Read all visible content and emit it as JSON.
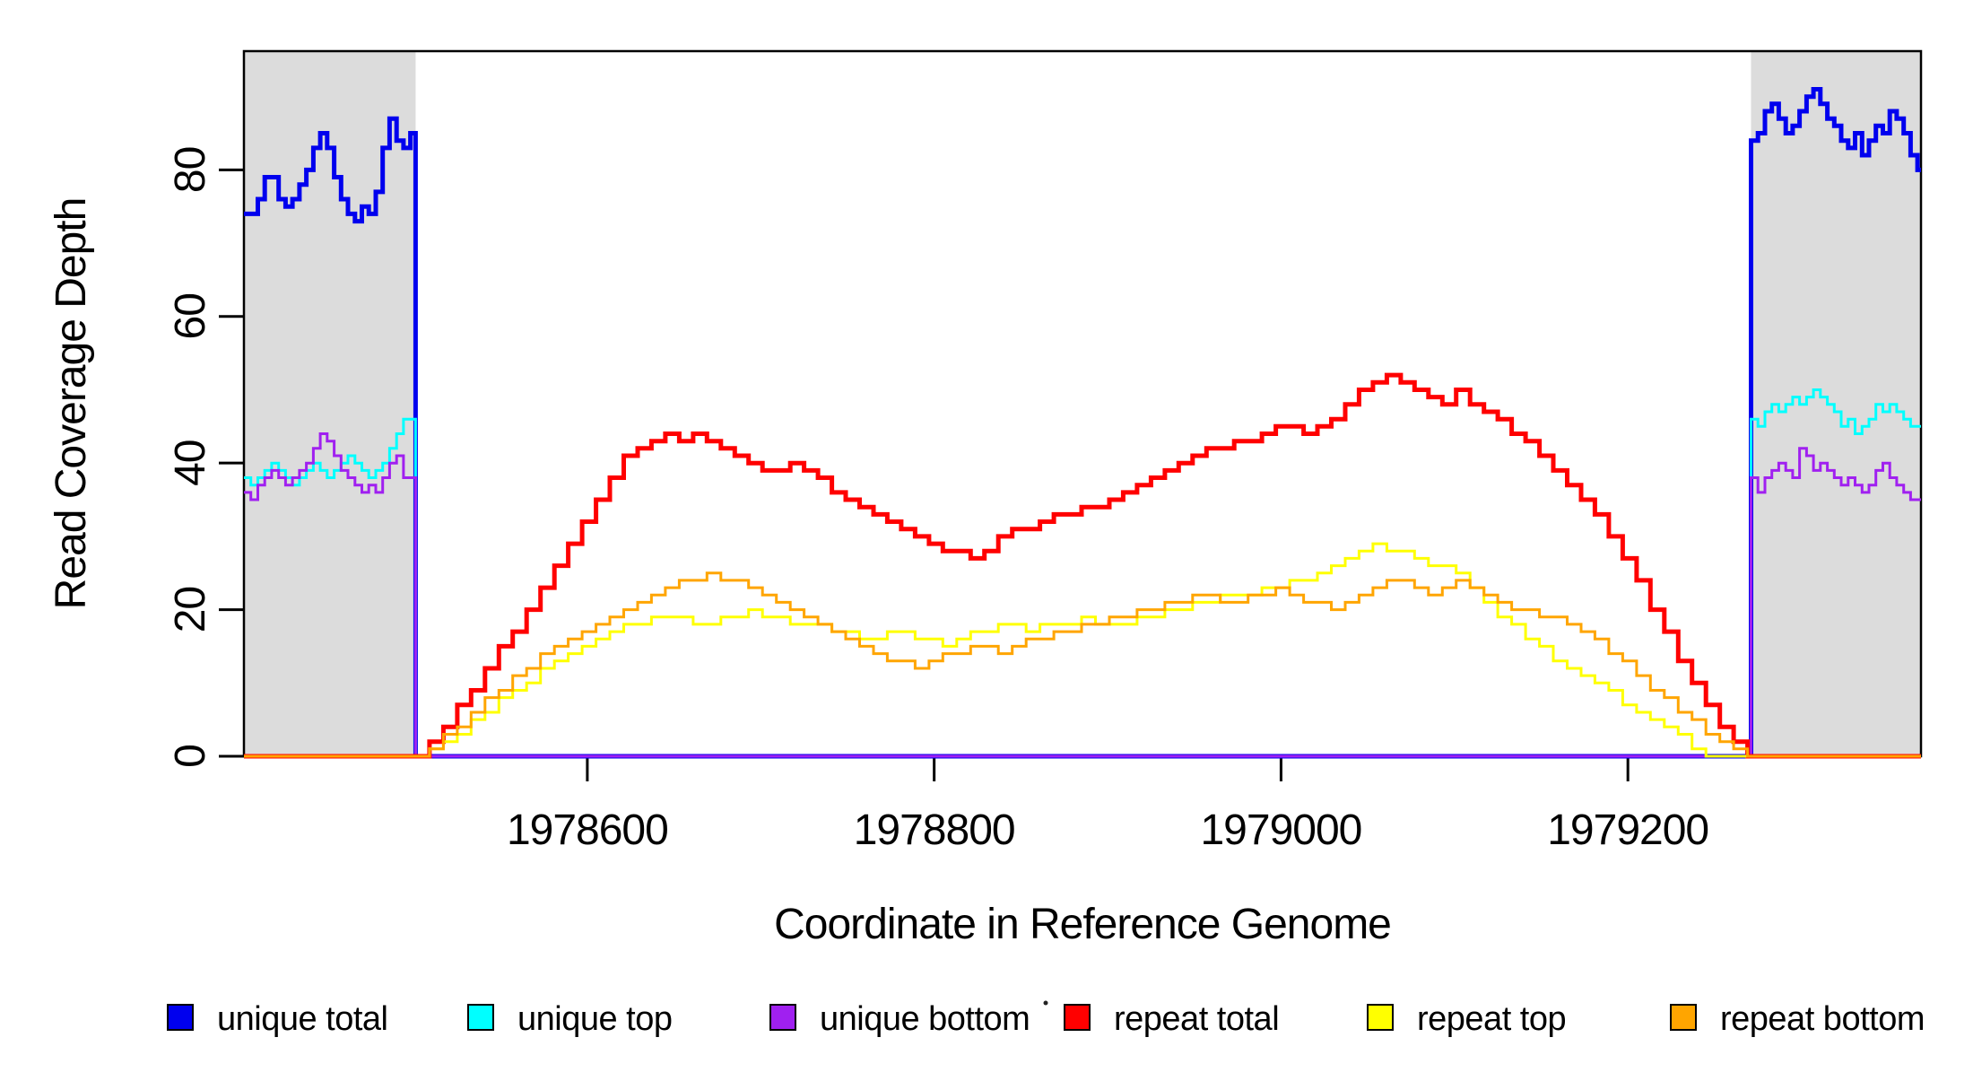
{
  "chart_data": {
    "type": "line",
    "title": "",
    "xlabel": "Coordinate in Reference Genome",
    "ylabel": "Read Coverage Depth",
    "x_ticks": [
      1978600,
      1978800,
      1979000,
      1979200
    ],
    "y_ticks": [
      0,
      20,
      40,
      60,
      80
    ],
    "xlim": [
      1978402,
      1979369
    ],
    "ylim": [
      0,
      96.2
    ],
    "grid": false,
    "step": true,
    "axis_color": "#000000",
    "background_color": "#ffffff",
    "shaded_regions": [
      {
        "name": "unique-flank-left",
        "x0": 1978402,
        "x1": 1978501,
        "color": "#dcdcdc"
      },
      {
        "name": "unique-flank-right",
        "x0": 1979271,
        "x1": 1979369,
        "color": "#dcdcdc"
      }
    ],
    "series": [
      {
        "name": "unique-total",
        "label": "unique total",
        "color": "#0000ee",
        "line_width": 5,
        "segments": [
          {
            "x0": 1978402,
            "dx": 4,
            "values": [
              74,
              74,
              76,
              79,
              79,
              76,
              75,
              76,
              78,
              80,
              83,
              85,
              83,
              79,
              76,
              74,
              73,
              75,
              74,
              77,
              83,
              87,
              84,
              83,
              85
            ]
          },
          {
            "x0": 1978501,
            "dx": 8,
            "values": [
              0
            ]
          },
          {
            "x0": 1979271,
            "dx": 4,
            "values": [
              84,
              85,
              88,
              89,
              87,
              85,
              86,
              88,
              90,
              91,
              89,
              87,
              86,
              84,
              83,
              85,
              82,
              84,
              86,
              85,
              88,
              87,
              85,
              82,
              80
            ]
          }
        ]
      },
      {
        "name": "unique-top",
        "label": "unique top",
        "color": "#00ffff",
        "line_width": 3,
        "segments": [
          {
            "x0": 1978402,
            "dx": 4,
            "values": [
              38,
              37,
              38,
              39,
              40,
              39,
              38,
              37,
              38,
              39,
              40,
              39,
              38,
              39,
              40,
              41,
              40,
              39,
              38,
              39,
              40,
              42,
              44,
              46,
              46
            ]
          },
          {
            "x0": 1978501,
            "dx": 8,
            "values": [
              0
            ]
          },
          {
            "x0": 1979271,
            "dx": 4,
            "values": [
              46,
              45,
              47,
              48,
              47,
              48,
              49,
              48,
              49,
              50,
              49,
              48,
              47,
              45,
              46,
              44,
              45,
              46,
              48,
              47,
              48,
              47,
              46,
              45,
              45
            ]
          }
        ]
      },
      {
        "name": "unique-bottom",
        "label": "unique bottom",
        "color": "#a020f0",
        "line_width": 3,
        "segments": [
          {
            "x0": 1978402,
            "dx": 4,
            "values": [
              36,
              35,
              37,
              38,
              39,
              38,
              37,
              38,
              39,
              40,
              42,
              44,
              43,
              41,
              39,
              38,
              37,
              36,
              37,
              36,
              38,
              40,
              41,
              38,
              38
            ]
          },
          {
            "x0": 1978501,
            "dx": 8,
            "values": [
              0
            ]
          },
          {
            "x0": 1979271,
            "dx": 4,
            "values": [
              38,
              36,
              38,
              39,
              40,
              39,
              38,
              42,
              41,
              39,
              40,
              39,
              38,
              37,
              38,
              37,
              36,
              37,
              39,
              40,
              38,
              37,
              36,
              35,
              35
            ]
          }
        ]
      },
      {
        "name": "repeat-total",
        "label": "repeat total",
        "color": "#ff0000",
        "line_width": 5,
        "segments": [
          {
            "x0": 1978402,
            "dx": 8,
            "values": [
              0
            ]
          },
          {
            "x0": 1978501,
            "dx": 8,
            "values": [
              0,
              2,
              4,
              7,
              9,
              12,
              15,
              17,
              20,
              23,
              26,
              29,
              32,
              35,
              38,
              41,
              42,
              43,
              44,
              43,
              44,
              43,
              42,
              41,
              40,
              39,
              39,
              40,
              39,
              38,
              36,
              35,
              34,
              33,
              32,
              31,
              30,
              29,
              28,
              28,
              27,
              28,
              30,
              31,
              31,
              32,
              33,
              33,
              34,
              34,
              35,
              36,
              37,
              38,
              39,
              40,
              41,
              42,
              42,
              43,
              43,
              44,
              45,
              45,
              44,
              45,
              46,
              48,
              50,
              51,
              52,
              51,
              50,
              49,
              48,
              50,
              48,
              47,
              46,
              44,
              43,
              41,
              39,
              37,
              35,
              33,
              30,
              27,
              24,
              20,
              17,
              13,
              10,
              7,
              4,
              2,
              0
            ]
          }
        ]
      },
      {
        "name": "repeat-top",
        "label": "repeat top",
        "color": "#ffff00",
        "line_width": 3,
        "segments": [
          {
            "x0": 1978402,
            "dx": 8,
            "values": [
              0
            ]
          },
          {
            "x0": 1978501,
            "dx": 8,
            "values": [
              0,
              1,
              2,
              3,
              5,
              6,
              8,
              9,
              10,
              12,
              13,
              14,
              15,
              16,
              17,
              18,
              18,
              19,
              19,
              19,
              18,
              18,
              19,
              19,
              20,
              19,
              19,
              18,
              18,
              18,
              17,
              17,
              16,
              16,
              17,
              17,
              16,
              16,
              15,
              16,
              17,
              17,
              18,
              18,
              17,
              18,
              18,
              18,
              19,
              18,
              18,
              18,
              19,
              19,
              20,
              20,
              21,
              21,
              22,
              22,
              22,
              23,
              23,
              24,
              24,
              25,
              26,
              27,
              28,
              29,
              28,
              28,
              27,
              26,
              26,
              25,
              23,
              21,
              19,
              18,
              16,
              15,
              13,
              12,
              11,
              10,
              9,
              7,
              6,
              5,
              4,
              3,
              1,
              0,
              0,
              0,
              0
            ]
          }
        ]
      },
      {
        "name": "repeat-bottom",
        "label": "repeat bottom",
        "color": "#ffa500",
        "line_width": 3,
        "segments": [
          {
            "x0": 1978402,
            "dx": 8,
            "values": [
              0
            ]
          },
          {
            "x0": 1978501,
            "dx": 8,
            "values": [
              0,
              1,
              3,
              4,
              6,
              8,
              9,
              11,
              12,
              14,
              15,
              16,
              17,
              18,
              19,
              20,
              21,
              22,
              23,
              24,
              24,
              25,
              24,
              24,
              23,
              22,
              21,
              20,
              19,
              18,
              17,
              16,
              15,
              14,
              13,
              13,
              12,
              13,
              14,
              14,
              15,
              15,
              14,
              15,
              16,
              16,
              17,
              17,
              18,
              18,
              19,
              19,
              20,
              20,
              21,
              21,
              22,
              22,
              21,
              21,
              22,
              22,
              23,
              22,
              21,
              21,
              20,
              21,
              22,
              23,
              24,
              24,
              23,
              22,
              23,
              24,
              23,
              22,
              21,
              20,
              20,
              19,
              19,
              18,
              17,
              16,
              14,
              13,
              11,
              9,
              8,
              6,
              5,
              3,
              2,
              1,
              0
            ]
          }
        ]
      }
    ],
    "legend": {
      "position": "bottom",
      "entries": [
        {
          "label": "unique total",
          "color": "#0000ee"
        },
        {
          "label": "unique top",
          "color": "#00ffff"
        },
        {
          "label": "unique bottom",
          "color": "#a020f0"
        },
        {
          "label": "repeat total",
          "color": "#ff0000"
        },
        {
          "label": "repeat top",
          "color": "#ffff00"
        },
        {
          "label": "repeat bottom",
          "color": "#ffa500"
        }
      ]
    },
    "annotations": [
      {
        "type": "stray-dot",
        "color": "#222222"
      }
    ]
  }
}
